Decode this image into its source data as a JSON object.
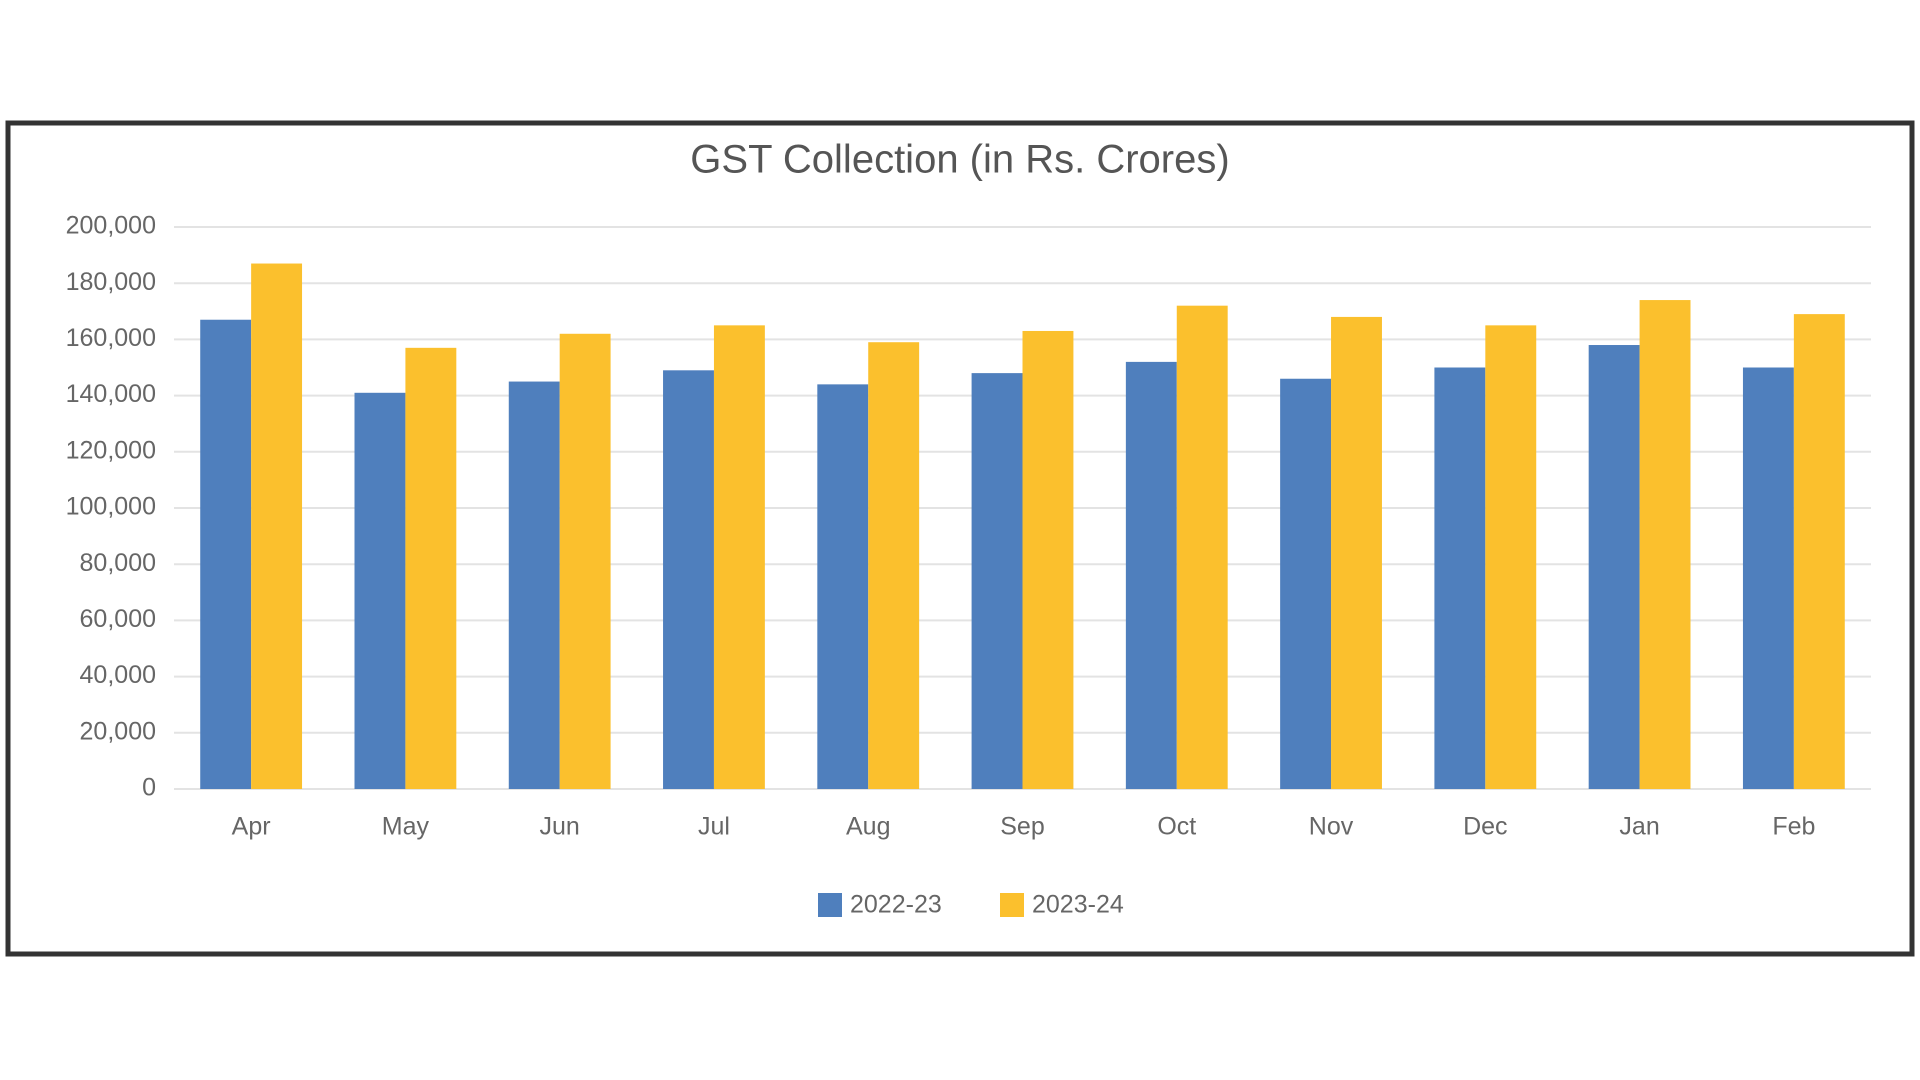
{
  "chart_data": {
    "type": "bar",
    "title": "GST Collection (in Rs. Crores)",
    "categories": [
      "Apr",
      "May",
      "Jun",
      "Jul",
      "Aug",
      "Sep",
      "Oct",
      "Nov",
      "Dec",
      "Jan",
      "Feb"
    ],
    "series": [
      {
        "name": "2022-23",
        "color": "#4f7fbd",
        "values": [
          167000,
          141000,
          145000,
          149000,
          144000,
          148000,
          152000,
          146000,
          150000,
          158000,
          150000
        ]
      },
      {
        "name": "2023-24",
        "color": "#fbc02d",
        "values": [
          187000,
          157000,
          162000,
          165000,
          159000,
          163000,
          172000,
          168000,
          165000,
          174000,
          169000
        ]
      }
    ],
    "ylim": [
      0,
      200000
    ],
    "yticks": [
      0,
      {
        "value": 20000,
        "label": "20,000"
      },
      {
        "value": 40000,
        "label": "40,000"
      },
      {
        "value": 60000,
        "label": "60,000"
      },
      {
        "value": 80000,
        "label": "80,000"
      },
      {
        "value": 100000,
        "label": "100,000"
      },
      {
        "value": 120000,
        "label": "120,000"
      },
      {
        "value": 140000,
        "label": "140,000"
      },
      {
        "value": 160000,
        "label": "160,000"
      },
      {
        "value": 180000,
        "label": "180,000"
      },
      {
        "value": 200000,
        "label": "200,000"
      }
    ],
    "grid": true,
    "legend": "bottom"
  }
}
